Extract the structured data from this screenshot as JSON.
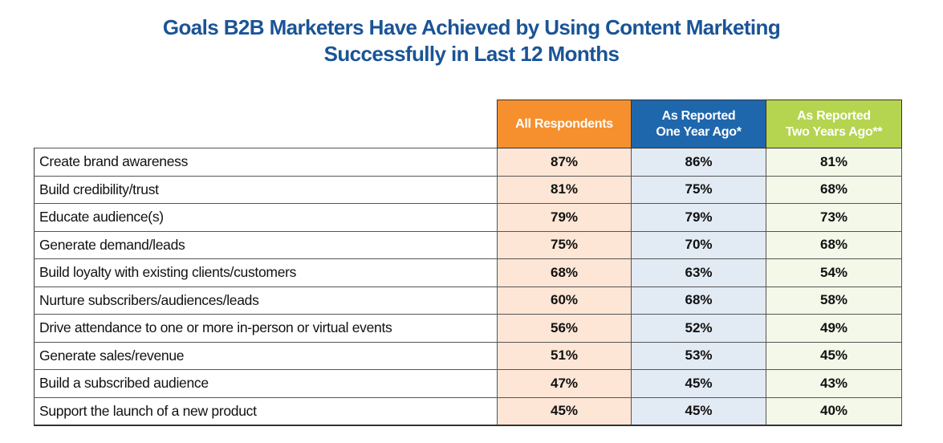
{
  "chart_data": {
    "type": "table",
    "title": "Goals B2B Marketers Have Achieved by Using Content Marketing Successfully in Last 12 Months",
    "title_lines": [
      "Goals B2B Marketers Have Achieved by Using Content Marketing",
      "Successfully in Last 12 Months"
    ],
    "columns": [
      {
        "name": "All Respondents",
        "lines": [
          "All Respondents"
        ],
        "color": "#f6902e"
      },
      {
        "name": "As Reported One Year Ago*",
        "lines": [
          "As Reported",
          "One Year Ago*"
        ],
        "color": "#1f67ad"
      },
      {
        "name": "As Reported Two Years Ago**",
        "lines": [
          "As Reported",
          "Two Years Ago**"
        ],
        "color": "#b5d44f"
      }
    ],
    "rows": [
      {
        "label": "Create brand awareness",
        "values": [
          "87%",
          "86%",
          "81%"
        ]
      },
      {
        "label": "Build credibility/trust",
        "values": [
          "81%",
          "75%",
          "68%"
        ]
      },
      {
        "label": "Educate audience(s)",
        "values": [
          "79%",
          "79%",
          "73%"
        ]
      },
      {
        "label": "Generate demand/leads",
        "values": [
          "75%",
          "70%",
          "68%"
        ]
      },
      {
        "label": "Build loyalty with existing clients/customers",
        "values": [
          "68%",
          "63%",
          "54%"
        ]
      },
      {
        "label": "Nurture subscribers/audiences/leads",
        "values": [
          "60%",
          "68%",
          "58%"
        ]
      },
      {
        "label": "Drive attendance to one or more in-person or virtual events",
        "values": [
          "56%",
          "52%",
          "49%"
        ]
      },
      {
        "label": "Generate sales/revenue",
        "values": [
          "51%",
          "53%",
          "45%"
        ]
      },
      {
        "label": "Build a subscribed audience",
        "values": [
          "47%",
          "45%",
          "43%"
        ]
      },
      {
        "label": "Support the launch of a new product",
        "values": [
          "45%",
          "45%",
          "40%"
        ]
      }
    ]
  }
}
